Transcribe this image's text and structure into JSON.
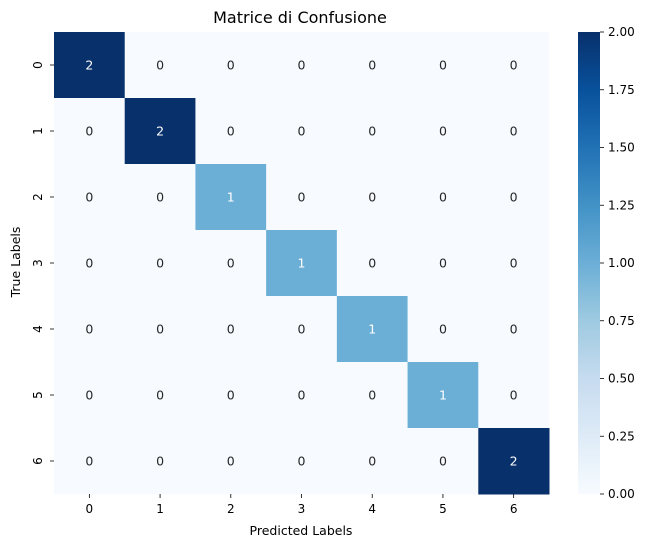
{
  "chart_data": {
    "type": "heatmap",
    "title": "Matrice di Confusione",
    "xlabel": "Predicted Labels",
    "ylabel": "True Labels",
    "x_categories": [
      "0",
      "1",
      "2",
      "3",
      "4",
      "5",
      "6"
    ],
    "y_categories": [
      "0",
      "1",
      "2",
      "3",
      "4",
      "5",
      "6"
    ],
    "values": [
      [
        2,
        0,
        0,
        0,
        0,
        0,
        0
      ],
      [
        0,
        2,
        0,
        0,
        0,
        0,
        0
      ],
      [
        0,
        0,
        1,
        0,
        0,
        0,
        0
      ],
      [
        0,
        0,
        0,
        1,
        0,
        0,
        0
      ],
      [
        0,
        0,
        0,
        0,
        1,
        0,
        0
      ],
      [
        0,
        0,
        0,
        0,
        0,
        1,
        0
      ],
      [
        0,
        0,
        0,
        0,
        0,
        0,
        2
      ]
    ],
    "colormap": "Blues",
    "vmin": 0,
    "vmax": 2,
    "colorbar_ticks": [
      "0.00",
      "0.25",
      "0.50",
      "0.75",
      "1.00",
      "1.25",
      "1.50",
      "1.75",
      "2.00"
    ],
    "annotations": true,
    "colors": {
      "low": "#f7fbff",
      "mid": "#6baed6",
      "high": "#08306b"
    }
  }
}
